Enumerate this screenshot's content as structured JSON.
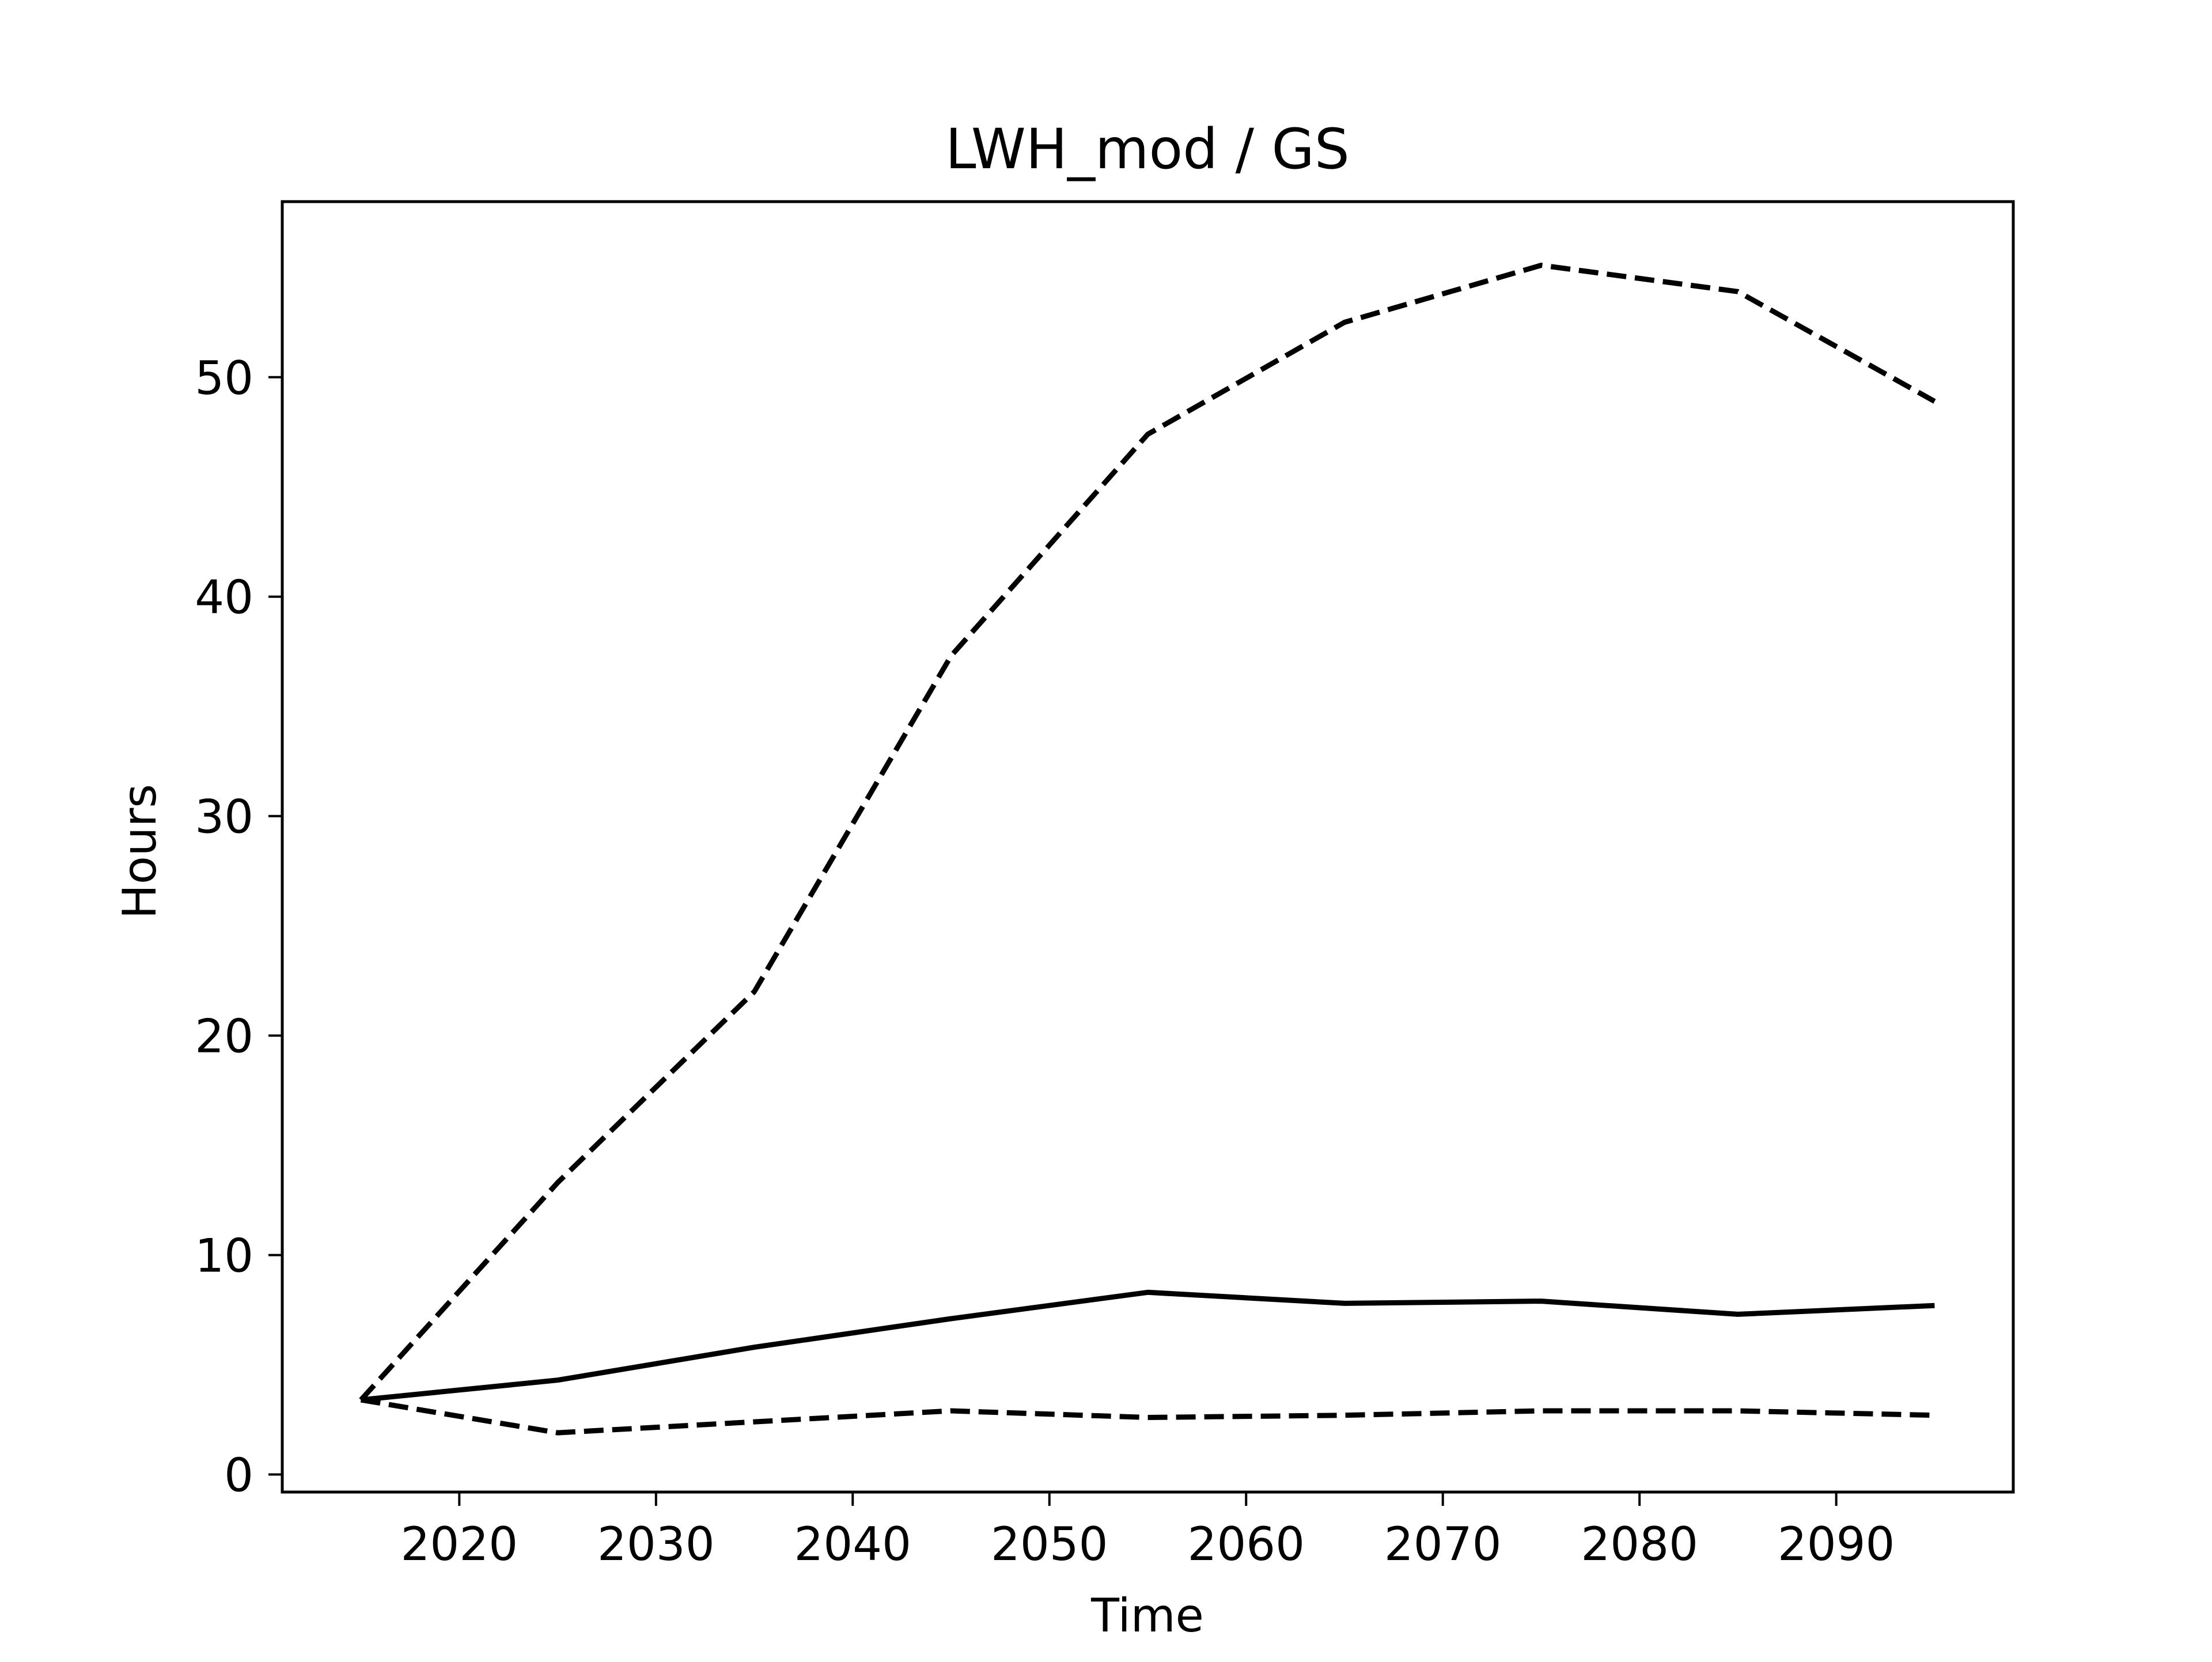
{
  "chart_data": {
    "type": "line",
    "title": "LWH_mod / GS",
    "xlabel": "Time",
    "ylabel": "Hours",
    "xlim": [
      2011,
      2099
    ],
    "ylim": [
      -0.8,
      58
    ],
    "xticks": [
      2020,
      2030,
      2040,
      2050,
      2060,
      2070,
      2080,
      2090
    ],
    "yticks": [
      0,
      10,
      20,
      30,
      40,
      50
    ],
    "grid": false,
    "legend": null,
    "x": [
      2015,
      2025,
      2035,
      2045,
      2055,
      2065,
      2075,
      2085,
      2095
    ],
    "series": [
      {
        "style": "dashed",
        "color": "#000000",
        "values": [
          3.4,
          13.3,
          22.0,
          37.3,
          47.4,
          52.5,
          55.1,
          53.9,
          48.9
        ]
      },
      {
        "style": "solid",
        "color": "#000000",
        "values": [
          3.4,
          4.3,
          5.8,
          7.1,
          8.3,
          7.8,
          7.9,
          7.3,
          7.7
        ]
      },
      {
        "style": "dashed",
        "color": "#000000",
        "values": [
          3.4,
          1.9,
          2.4,
          2.9,
          2.6,
          2.7,
          2.9,
          2.9,
          2.7
        ]
      }
    ]
  }
}
